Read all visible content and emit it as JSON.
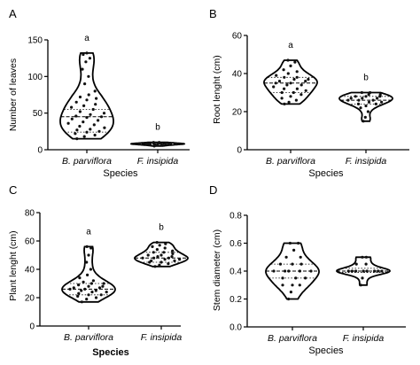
{
  "chart_data": [
    {
      "panel": "A",
      "type": "violin",
      "categories": [
        "B. parviflora",
        "F. insipida"
      ],
      "xlabel": "Species",
      "ylabel": "Number of leaves",
      "ylim": [
        0,
        150
      ],
      "yticks": [
        0,
        50,
        100,
        150
      ],
      "letters": [
        "a",
        "b"
      ],
      "series": [
        {
          "category": "B. parviflora",
          "min": 15,
          "q1": 24,
          "median": 45,
          "q3": 55,
          "max": 132,
          "points": [
            15,
            18,
            20,
            22,
            24,
            25,
            27,
            28,
            30,
            32,
            34,
            36,
            38,
            40,
            42,
            44,
            45,
            46,
            48,
            50,
            52,
            55,
            58,
            60,
            62,
            65,
            68,
            70,
            72,
            75,
            80,
            90,
            100,
            110,
            120,
            125,
            130,
            132
          ]
        },
        {
          "category": "F. insipida",
          "min": 5,
          "q1": 7,
          "median": 8,
          "q3": 9,
          "max": 10,
          "points": [
            5,
            6,
            6,
            7,
            7,
            7,
            7,
            8,
            8,
            8,
            8,
            8,
            8,
            9,
            9,
            9,
            9,
            10,
            10
          ]
        }
      ]
    },
    {
      "panel": "B",
      "type": "violin",
      "categories": [
        "B. parviflora",
        "F. insipida"
      ],
      "xlabel": "Species",
      "ylabel": "Root lenght (cm)",
      "ylim": [
        0,
        60
      ],
      "yticks": [
        0,
        20,
        40,
        60
      ],
      "letters": [
        "a",
        "b"
      ],
      "series": [
        {
          "category": "B. parviflora",
          "min": 24,
          "q1": 30,
          "median": 35,
          "q3": 38,
          "max": 47,
          "points": [
            24,
            25,
            26,
            27,
            28,
            29,
            30,
            30,
            31,
            32,
            32,
            33,
            34,
            34,
            35,
            35,
            36,
            36,
            37,
            37,
            38,
            38,
            39,
            40,
            41,
            42,
            44,
            46,
            47
          ]
        },
        {
          "category": "F. insipida",
          "min": 15,
          "q1": 24,
          "median": 26,
          "q3": 28,
          "max": 30,
          "points": [
            15,
            17,
            20,
            22,
            23,
            24,
            24,
            25,
            25,
            26,
            26,
            26,
            27,
            27,
            27,
            28,
            28,
            28,
            29,
            29,
            30,
            30
          ]
        }
      ]
    },
    {
      "panel": "C",
      "type": "violin",
      "categories": [
        "B. parviflora",
        "F. insipida"
      ],
      "xlabel": "Species",
      "ylabel": "Plant lenght (cm)",
      "ylim": [
        0,
        80
      ],
      "yticks": [
        0,
        20,
        40,
        60,
        80
      ],
      "letters": [
        "a",
        "b"
      ],
      "series": [
        {
          "category": "B. parviflora",
          "min": 17,
          "q1": 22,
          "median": 26,
          "q3": 30,
          "max": 56,
          "points": [
            17,
            19,
            20,
            21,
            22,
            22,
            23,
            24,
            24,
            25,
            25,
            26,
            26,
            27,
            27,
            28,
            28,
            29,
            30,
            30,
            31,
            32,
            34,
            36,
            40,
            45,
            50,
            55,
            56
          ]
        },
        {
          "category": "F. insipida",
          "min": 42,
          "q1": 45,
          "median": 48,
          "q3": 52,
          "max": 59,
          "points": [
            42,
            43,
            44,
            45,
            45,
            46,
            46,
            47,
            47,
            48,
            48,
            48,
            49,
            49,
            50,
            50,
            51,
            52,
            52,
            53,
            54,
            55,
            56,
            57,
            58,
            59
          ]
        }
      ]
    },
    {
      "panel": "D",
      "type": "violin",
      "categories": [
        "B. parviflora",
        "F. insipida"
      ],
      "xlabel": "Species",
      "ylabel": "Stem diameter (cm)",
      "ylim": [
        0,
        0.8
      ],
      "yticks": [
        0.0,
        0.2,
        0.4,
        0.6,
        0.8
      ],
      "letters": [
        "",
        ""
      ],
      "series": [
        {
          "category": "B. parviflora",
          "min": 0.2,
          "q1": 0.35,
          "median": 0.4,
          "q3": 0.45,
          "max": 0.6,
          "points": [
            0.2,
            0.25,
            0.3,
            0.3,
            0.3,
            0.35,
            0.35,
            0.35,
            0.4,
            0.4,
            0.4,
            0.4,
            0.4,
            0.45,
            0.45,
            0.45,
            0.5,
            0.5,
            0.55,
            0.6,
            0.6
          ]
        },
        {
          "category": "F. insipida",
          "min": 0.3,
          "q1": 0.39,
          "median": 0.4,
          "q3": 0.42,
          "max": 0.5,
          "points": [
            0.3,
            0.35,
            0.4,
            0.4,
            0.4,
            0.4,
            0.4,
            0.4,
            0.4,
            0.4,
            0.45,
            0.45,
            0.5,
            0.5
          ]
        }
      ]
    }
  ]
}
